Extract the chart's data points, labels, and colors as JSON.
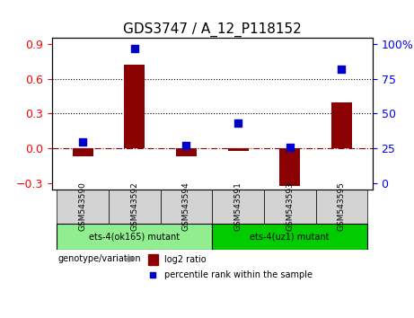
{
  "title": "GDS3747 / A_12_P118152",
  "categories": [
    "GSM543590",
    "GSM543592",
    "GSM543594",
    "GSM543591",
    "GSM543593",
    "GSM543595"
  ],
  "log2_ratio": [
    -0.07,
    0.72,
    -0.07,
    -0.02,
    -0.32,
    0.4
  ],
  "percentile": [
    30,
    97,
    27,
    43,
    26,
    82
  ],
  "ylim_left": [
    -0.35,
    0.95
  ],
  "ylim_right": [
    0,
    125
  ],
  "yticks_left": [
    -0.3,
    0.0,
    0.3,
    0.6,
    0.9
  ],
  "yticks_right": [
    0,
    25,
    50,
    75,
    100
  ],
  "hlines": [
    0.0,
    0.3,
    0.6
  ],
  "bar_color": "#8B0000",
  "dot_color": "#0000CD",
  "zero_line_color": "#8B0000",
  "grid_color": "black",
  "group1_label": "ets-4(ok165) mutant",
  "group2_label": "ets-4(uz1) mutant",
  "group1_color": "#90EE90",
  "group2_color": "#00CC00",
  "group1_indices": [
    0,
    1,
    2
  ],
  "group2_indices": [
    3,
    4,
    5
  ],
  "genotype_label": "genotype/variation",
  "legend_bar_label": "log2 ratio",
  "legend_dot_label": "percentile rank within the sample",
  "title_fontsize": 11,
  "axis_fontsize": 9,
  "label_fontsize": 8
}
